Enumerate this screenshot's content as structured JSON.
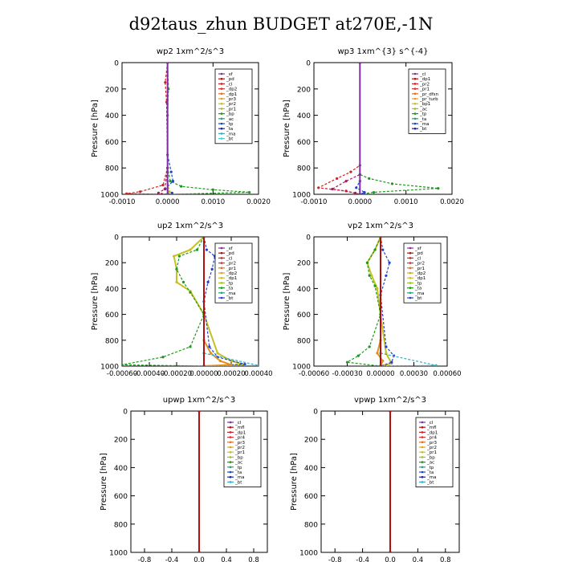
{
  "figure": {
    "title": "d92taus_zhun  BUDGET at270E,-1N"
  },
  "chart_data": [
    {
      "type": "line",
      "title": "wp2   1xm^2/s^3",
      "ylabel": "Pressure  [hPa]",
      "xlim": [
        -0.001,
        0.002
      ],
      "ylim": [
        1000,
        0
      ],
      "xticks": [
        "-0.0010",
        "0.0000",
        "0.0010",
        "0.0020"
      ],
      "xtick_values": [
        -0.001,
        0,
        0.001,
        0.002
      ],
      "yticks": [
        "0",
        "200",
        "400",
        "600",
        "800",
        "1000"
      ],
      "legend": [
        "_sf",
        "_pd",
        "_cl",
        "_dp2",
        "_dp1",
        "_pr3",
        "_pr2",
        "_pr1",
        "_bp",
        "_ac",
        "_tp",
        "_ta",
        "_ma",
        "_bt"
      ],
      "legend_placement": "top-right",
      "series": [
        {
          "name": "_ac",
          "color": "#1a9a1a",
          "dashed": true,
          "values": [
            [
              0,
              0
            ],
            [
              2e-05,
              200
            ],
            [
              0,
              400
            ],
            [
              0,
              800
            ],
            [
              6e-05,
              900
            ],
            [
              0.0003,
              940
            ],
            [
              0.001,
              965
            ],
            [
              0.0018,
              985
            ],
            [
              0.0001,
              1000
            ]
          ]
        },
        {
          "name": "_dp1",
          "color": "#d02020",
          "dashed": true,
          "values": [
            [
              0,
              0
            ],
            [
              -5e-05,
              150
            ],
            [
              -2e-05,
              300
            ],
            [
              0,
              800
            ],
            [
              -0.0001,
              930
            ],
            [
              -0.0006,
              980
            ],
            [
              -0.0009,
              995
            ],
            [
              0,
              1000
            ]
          ]
        },
        {
          "name": "_tp",
          "color": "#2040d0",
          "dashed": true,
          "values": [
            [
              0,
              0
            ],
            [
              0,
              700
            ],
            [
              8e-05,
              830
            ],
            [
              0.00012,
              900
            ],
            [
              -5e-05,
              960
            ],
            [
              0.0001,
              990
            ],
            [
              0,
              1000
            ]
          ]
        },
        {
          "name": "_dp2",
          "color": "#a02060",
          "dashed": true,
          "values": [
            [
              0,
              0
            ],
            [
              0,
              800
            ],
            [
              -6e-05,
              960
            ],
            [
              -0.0002,
              990
            ],
            [
              0,
              1000
            ]
          ]
        },
        {
          "name": "_pr1",
          "color": "#c0c020",
          "dashed": true,
          "values": [
            [
              0,
              0
            ],
            [
              0,
              900
            ],
            [
              4e-05,
              980
            ],
            [
              0,
              1000
            ]
          ]
        },
        {
          "name": "_bt",
          "color": "#8030a0",
          "dashed": false,
          "values": [
            [
              0,
              0
            ],
            [
              0,
              1000
            ]
          ]
        }
      ]
    },
    {
      "type": "line",
      "title": "wp3   1xm^{3} s^{-4}",
      "ylabel": "Pressure  [hPa]",
      "xlim": [
        -0.001,
        0.002
      ],
      "ylim": [
        1000,
        0
      ],
      "xticks": [
        "-0.0010",
        "0.0000",
        "0.0010",
        "0.0020"
      ],
      "xtick_values": [
        -0.001,
        0,
        0.001,
        0.002
      ],
      "yticks": [
        "0",
        "200",
        "400",
        "600",
        "800",
        "1000"
      ],
      "legend": [
        "_cl",
        "_dp1",
        "_pr2",
        "_pr1",
        "_pr_dfsn",
        "_pr_turb",
        "_bp1",
        "_ac",
        "_tp",
        "_ta",
        "_ma",
        "_bt"
      ],
      "legend_placement": "top-right",
      "series": [
        {
          "name": "_ac",
          "color": "#1a9a1a",
          "dashed": true,
          "values": [
            [
              0,
              0
            ],
            [
              0,
              850
            ],
            [
              0.0002,
              880
            ],
            [
              0.0007,
              920
            ],
            [
              0.0017,
              955
            ],
            [
              0.0003,
              985
            ],
            [
              0,
              1000
            ]
          ]
        },
        {
          "name": "_pr1",
          "color": "#d02020",
          "dashed": true,
          "values": [
            [
              0,
              0
            ],
            [
              0,
              780
            ],
            [
              -0.0002,
              830
            ],
            [
              -0.0005,
              880
            ],
            [
              -0.0009,
              950
            ],
            [
              -0.0003,
              975
            ],
            [
              0,
              1000
            ]
          ]
        },
        {
          "name": "_dp1",
          "color": "#a02060",
          "dashed": true,
          "values": [
            [
              0,
              0
            ],
            [
              0,
              850
            ],
            [
              -0.0003,
              900
            ],
            [
              -0.0006,
              960
            ],
            [
              -0.0001,
              990
            ],
            [
              0,
              1000
            ]
          ]
        },
        {
          "name": "_tp",
          "color": "#2040d0",
          "dashed": true,
          "values": [
            [
              0,
              0
            ],
            [
              0,
              900
            ],
            [
              -8e-05,
              950
            ],
            [
              0.0001,
              985
            ],
            [
              0,
              1000
            ]
          ]
        },
        {
          "name": "_bt",
          "color": "#8030a0",
          "dashed": false,
          "values": [
            [
              0,
              0
            ],
            [
              0,
              1000
            ]
          ]
        }
      ]
    },
    {
      "type": "line",
      "title": "up2   1xm^2/s^3",
      "ylabel": "Pressure  [hPa]",
      "xlim": [
        -0.0006,
        0.0004
      ],
      "ylim": [
        1000,
        0
      ],
      "xticks": [
        "-0.00060",
        "-0.00040",
        "-0.00020",
        "0.00000",
        "0.00020",
        "0.00040"
      ],
      "xtick_values": [
        -0.0006,
        -0.0004,
        -0.0002,
        0,
        0.0002,
        0.0004
      ],
      "yticks": [
        "0",
        "200",
        "400",
        "600",
        "800",
        "1000"
      ],
      "legend": [
        "_sf",
        "_pd",
        "_cl",
        "_pr2",
        "_pr1",
        "_dp2",
        "_dp1",
        "_tp",
        "_ta",
        "_ma",
        "_bt"
      ],
      "legend_placement": "top-right",
      "series": [
        {
          "name": "_pr1",
          "color": "#c8c020",
          "dashed": false,
          "values": [
            [
              0,
              0
            ],
            [
              -0.0001,
              100
            ],
            [
              -0.00022,
              150
            ],
            [
              -0.0002,
              250
            ],
            [
              -0.0002,
              350
            ],
            [
              -0.0001,
              420
            ],
            [
              0,
              600
            ],
            [
              0.0001,
              900
            ],
            [
              0.0002,
              960
            ],
            [
              0.0003,
              990
            ],
            [
              0,
              1000
            ]
          ]
        },
        {
          "name": "_dp1",
          "color": "#1a9a1a",
          "dashed": true,
          "values": [
            [
              0,
              0
            ],
            [
              -5e-05,
              100
            ],
            [
              -0.00018,
              150
            ],
            [
              -0.0002,
              250
            ],
            [
              -0.00015,
              350
            ],
            [
              -0.0001,
              430
            ],
            [
              0,
              600
            ],
            [
              -0.0001,
              850
            ],
            [
              -0.0003,
              930
            ],
            [
              -0.0006,
              990
            ],
            [
              0,
              1000
            ]
          ]
        },
        {
          "name": "_tp",
          "color": "#2040d0",
          "dashed": true,
          "values": [
            [
              0,
              0
            ],
            [
              2e-05,
              100
            ],
            [
              8e-05,
              150
            ],
            [
              6e-05,
              250
            ],
            [
              3e-05,
              350
            ],
            [
              0,
              500
            ],
            [
              4e-05,
              850
            ],
            [
              0.0001,
              930
            ],
            [
              0.0003,
              985
            ],
            [
              0,
              1000
            ]
          ]
        },
        {
          "name": "_pr2",
          "color": "#e09020",
          "dashed": false,
          "values": [
            [
              0,
              0
            ],
            [
              0,
              800
            ],
            [
              5e-05,
              900
            ],
            [
              0.00012,
              960
            ],
            [
              0.0002,
              990
            ],
            [
              0,
              1000
            ]
          ]
        },
        {
          "name": "_ma",
          "color": "#30b0c0",
          "dashed": true,
          "values": [
            [
              0,
              0
            ],
            [
              0,
              900
            ],
            [
              0.0004,
              995
            ],
            [
              0,
              1000
            ]
          ]
        },
        {
          "name": "_pd",
          "color": "#b01010",
          "dashed": false,
          "values": [
            [
              0,
              0
            ],
            [
              0,
              1000
            ]
          ]
        }
      ]
    },
    {
      "type": "line",
      "title": "vp2   1xm^2/s^3",
      "ylabel": "Pressure  [hPa]",
      "xlim": [
        -0.0006,
        0.0006
      ],
      "ylim": [
        1000,
        0
      ],
      "xticks": [
        "-0.00060",
        "-0.00030",
        "0.00000",
        "0.00030",
        "0.00060"
      ],
      "xtick_values": [
        -0.0006,
        -0.0003,
        0,
        0.0003,
        0.0006
      ],
      "yticks": [
        "0",
        "200",
        "400",
        "600",
        "800",
        "1000"
      ],
      "legend": [
        "_sf",
        "_pd",
        "_cl",
        "_pr2",
        "_pr1",
        "_dp2",
        "_dp1",
        "_tp",
        "_ta",
        "_ma",
        "_bt"
      ],
      "legend_placement": "top-right",
      "series": [
        {
          "name": "_pr1",
          "color": "#c8c020",
          "dashed": false,
          "values": [
            [
              0,
              0
            ],
            [
              -5e-05,
              100
            ],
            [
              -0.00012,
              200
            ],
            [
              -8e-05,
              300
            ],
            [
              -3e-05,
              400
            ],
            [
              0,
              600
            ],
            [
              5e-05,
              900
            ],
            [
              0.0001,
              980
            ],
            [
              0,
              1000
            ]
          ]
        },
        {
          "name": "_dp1",
          "color": "#1a9a1a",
          "dashed": true,
          "values": [
            [
              0,
              0
            ],
            [
              -5e-05,
              100
            ],
            [
              -0.00012,
              200
            ],
            [
              -0.0001,
              300
            ],
            [
              -5e-05,
              380
            ],
            [
              0,
              600
            ],
            [
              -0.0001,
              850
            ],
            [
              -0.0002,
              920
            ],
            [
              -0.0003,
              970
            ],
            [
              0,
              1000
            ]
          ]
        },
        {
          "name": "_tp",
          "color": "#2040d0",
          "dashed": true,
          "values": [
            [
              0,
              0
            ],
            [
              2e-05,
              100
            ],
            [
              8e-05,
              200
            ],
            [
              5e-05,
              300
            ],
            [
              0,
              450
            ],
            [
              5e-05,
              850
            ],
            [
              0.00012,
              920
            ],
            [
              0.0001,
              970
            ],
            [
              0,
              1000
            ]
          ]
        },
        {
          "name": "_pr2",
          "color": "#e09020",
          "dashed": false,
          "values": [
            [
              0,
              0
            ],
            [
              0,
              800
            ],
            [
              -3e-05,
              900
            ],
            [
              2e-05,
              960
            ],
            [
              0,
              1000
            ]
          ]
        },
        {
          "name": "_ma",
          "color": "#30b0c0",
          "dashed": true,
          "values": [
            [
              0,
              0
            ],
            [
              0,
              900
            ],
            [
              0.0005,
              995
            ],
            [
              0,
              1000
            ]
          ]
        },
        {
          "name": "_pd",
          "color": "#b01010",
          "dashed": false,
          "values": [
            [
              0,
              0
            ],
            [
              0,
              1000
            ]
          ]
        }
      ]
    },
    {
      "type": "line",
      "title": "upwp   1xm^2/s^3",
      "ylabel": "Pressure  [hPa]",
      "xlim": [
        -1,
        1
      ],
      "ylim": [
        1000,
        0
      ],
      "xticks": [
        "-0.8",
        "-0.4",
        "0.0",
        "0.4",
        "0.8"
      ],
      "xtick_values": [
        -0.8,
        -0.4,
        0,
        0.4,
        0.8
      ],
      "yticks": [
        "0",
        "200",
        "400",
        "600",
        "800",
        "1000"
      ],
      "legend": [
        "_cl",
        "_mfl",
        "_dp1",
        "_pr4",
        "_pr3",
        "_pr2",
        "_pr1",
        "_bp",
        "_ac",
        "_tp",
        "_ta",
        "_ma",
        "_bt"
      ],
      "legend_placement": "top-right",
      "series": [
        {
          "name": "_cl",
          "color": "#8030a0",
          "dashed": false,
          "values": [
            [
              0,
              0
            ],
            [
              0,
              1000
            ]
          ]
        },
        {
          "name": "_dp1",
          "color": "#b01010",
          "dashed": false,
          "values": [
            [
              0,
              0
            ],
            [
              0,
              1000
            ]
          ]
        }
      ]
    },
    {
      "type": "line",
      "title": "vpwp   1xm^2/s^3",
      "ylabel": "Pressure  [hPa]",
      "xlim": [
        -1,
        1
      ],
      "ylim": [
        1000,
        0
      ],
      "xticks": [
        "-0.8",
        "-0.4",
        "0.0",
        "0.4",
        "0.8"
      ],
      "xtick_values": [
        -0.8,
        -0.4,
        0,
        0.4,
        0.8
      ],
      "yticks": [
        "0",
        "200",
        "400",
        "600",
        "800",
        "1000"
      ],
      "legend": [
        "_cl",
        "_mfl",
        "_dp1",
        "_pr4",
        "_pr3",
        "_pr2",
        "_pr1",
        "_bp",
        "_ac",
        "_tp",
        "_ta",
        "_ma",
        "_bt"
      ],
      "legend_placement": "top-right",
      "series": [
        {
          "name": "_cl",
          "color": "#8030a0",
          "dashed": false,
          "values": [
            [
              0,
              0
            ],
            [
              0,
              1000
            ]
          ]
        },
        {
          "name": "_dp1",
          "color": "#b01010",
          "dashed": false,
          "values": [
            [
              0,
              0
            ],
            [
              0,
              1000
            ]
          ]
        }
      ]
    }
  ]
}
